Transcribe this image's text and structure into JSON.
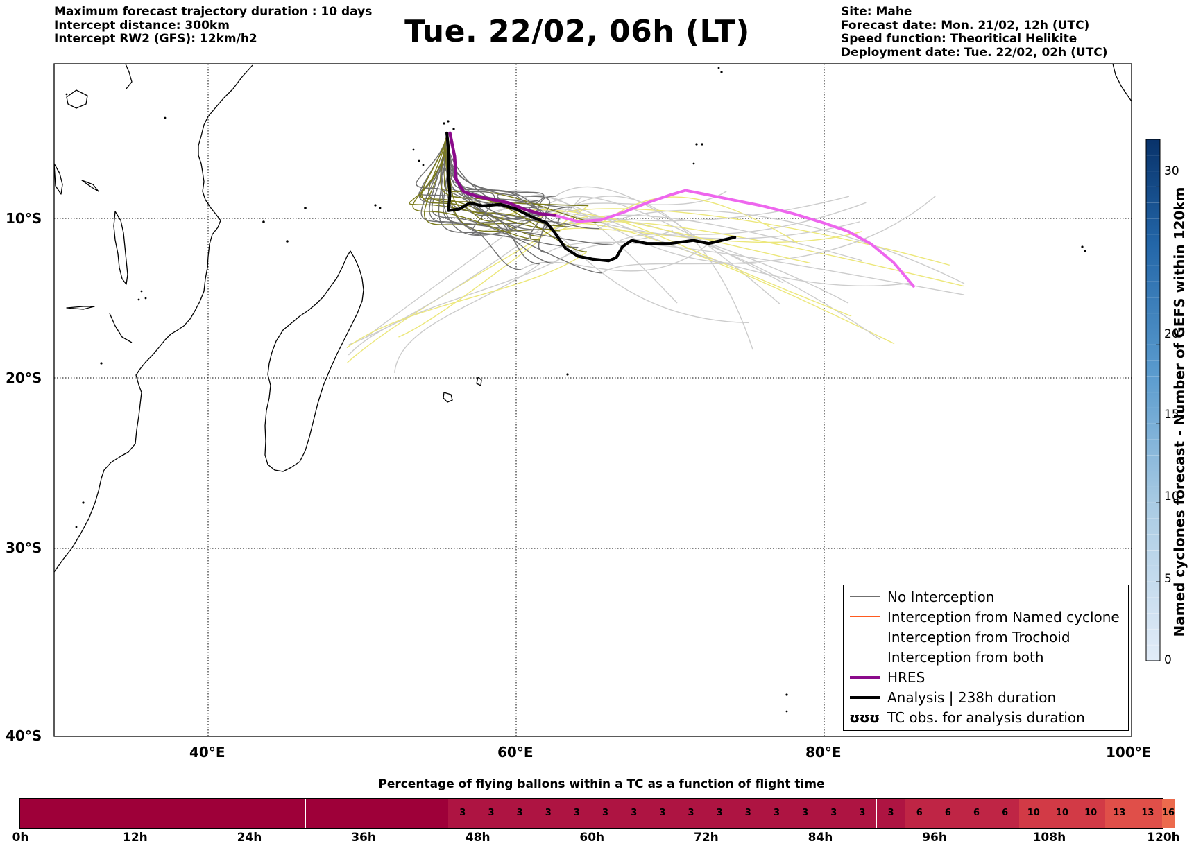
{
  "header": {
    "left": [
      "Maximum forecast trajectory duration : 10 days",
      "Intercept distance: 300km",
      "Intercept RW2 (GFS):  12km/h2"
    ],
    "title": "Tue. 22/02, 06h (LT)",
    "right": [
      "Site: Mahe",
      "Forecast date: Mon. 21/02, 12h (UTC)",
      "Speed function: Theoritical Helikite",
      "Deployment date: Tue. 22/02, 02h (UTC)"
    ]
  },
  "map": {
    "lat_labels": [
      "10°S",
      "20°S",
      "30°S",
      "40°S"
    ],
    "lon_labels": [
      "40°E",
      "60°E",
      "80°E",
      "100°E"
    ],
    "lon_range": [
      30,
      100
    ],
    "lat_range": [
      -40,
      -2
    ],
    "analysis_track": [
      [
        55.5,
        -4.5
      ],
      [
        55.6,
        -5.5
      ],
      [
        55.6,
        -7.0
      ],
      [
        55.7,
        -8.5
      ],
      [
        55.6,
        -9.5
      ],
      [
        56.3,
        -9.4
      ],
      [
        57.0,
        -9.0
      ],
      [
        57.8,
        -9.2
      ],
      [
        59.0,
        -9.1
      ],
      [
        60.0,
        -9.4
      ],
      [
        61.0,
        -9.9
      ],
      [
        62.0,
        -10.3
      ],
      [
        62.5,
        -10.9
      ],
      [
        63.2,
        -11.9
      ],
      [
        64.0,
        -12.4
      ],
      [
        65.0,
        -12.6
      ],
      [
        66.0,
        -12.7
      ],
      [
        66.5,
        -12.5
      ],
      [
        66.9,
        -11.8
      ],
      [
        67.5,
        -11.4
      ],
      [
        68.5,
        -11.6
      ],
      [
        70.0,
        -11.6
      ],
      [
        71.5,
        -11.4
      ],
      [
        72.5,
        -11.6
      ],
      [
        74.2,
        -11.2
      ]
    ],
    "hres_track": [
      [
        55.7,
        -4.5
      ],
      [
        56.0,
        -6.0
      ],
      [
        56.1,
        -7.5
      ],
      [
        56.6,
        -8.3
      ],
      [
        57.5,
        -8.6
      ],
      [
        58.5,
        -8.8
      ],
      [
        59.5,
        -9.0
      ],
      [
        60.5,
        -9.4
      ],
      [
        61.5,
        -9.7
      ],
      [
        62.5,
        -9.8
      ]
    ],
    "hres_forecast_track": [
      [
        62.5,
        -9.8
      ],
      [
        64.0,
        -10.2
      ],
      [
        65.5,
        -10.1
      ],
      [
        67.0,
        -9.6
      ],
      [
        68.5,
        -9.0
      ],
      [
        70.0,
        -8.5
      ],
      [
        71.0,
        -8.2
      ],
      [
        72.0,
        -8.4
      ],
      [
        74.0,
        -8.8
      ],
      [
        76.0,
        -9.2
      ],
      [
        78.0,
        -9.7
      ],
      [
        80.0,
        -10.3
      ],
      [
        81.5,
        -10.8
      ],
      [
        83.0,
        -11.6
      ],
      [
        84.5,
        -12.8
      ],
      [
        85.8,
        -14.3
      ]
    ],
    "colors": {
      "no_interception": "#6f6f6f",
      "no_interception_late": "#cccccc",
      "named_cyclone": "#ff5a1f",
      "trochoid": "#7a7a1a",
      "trochoid_late": "#ece77a",
      "both": "#2a8c2a",
      "hres": "#8b0a8b",
      "hres_late": "#ee66ee",
      "analysis": "#000000"
    }
  },
  "legend": {
    "items": [
      {
        "label": "No Interception",
        "color": "#6f6f6f",
        "width": 1.3
      },
      {
        "label": "Interception from Named cyclone",
        "color": "#ff5a1f",
        "width": 1.3
      },
      {
        "label": "Interception from Trochoid",
        "color": "#7a7a1a",
        "width": 1.3
      },
      {
        "label": "Interception from both",
        "color": "#2a8c2a",
        "width": 1.3
      },
      {
        "label": "HRES",
        "color": "#8b0a8b",
        "width": 4
      },
      {
        "label": "Analysis | 238h duration",
        "color": "#000000",
        "width": 4
      },
      {
        "label": "TC obs. for analysis duration",
        "symbol": "ʊʊʊ"
      }
    ]
  },
  "colorbar": {
    "label": "Named cyclones forecast - Number of GEFS within 120km",
    "ticks": [
      "0",
      "5",
      "10",
      "15",
      "20",
      "30"
    ],
    "tick_values": [
      0,
      5,
      10,
      15,
      20,
      30
    ],
    "max": 33
  },
  "percentage_bar": {
    "title": "Percentage of flying ballons within a TC as a function of flight time",
    "hour_labels": [
      "0h",
      "12h",
      "24h",
      "36h",
      "48h",
      "60h",
      "72h",
      "84h",
      "96h",
      "108h",
      "120h"
    ],
    "values": [
      0,
      0,
      0,
      0,
      0,
      0,
      0,
      0,
      0,
      0,
      0,
      0,
      0,
      0,
      0,
      3,
      3,
      3,
      3,
      3,
      3,
      3,
      3,
      3,
      3,
      3,
      3,
      3,
      3,
      3,
      3,
      6,
      6,
      6,
      6,
      10,
      10,
      10,
      13,
      13,
      16
    ],
    "colors": {
      "0": "#9e0039",
      "3": "#ae1442",
      "6": "#bf2545",
      "10": "#d23a46",
      "13": "#e04f49",
      "16": "#ec6a4d"
    }
  }
}
